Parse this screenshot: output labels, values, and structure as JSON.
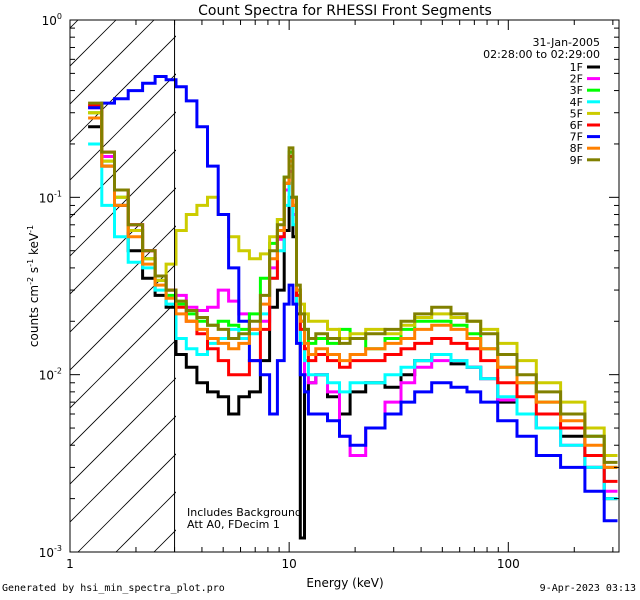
{
  "chart_data": {
    "type": "line",
    "title": "Count Spectra for RHESSI Front Segments",
    "xlabel": "Energy (keV)",
    "ylabel": "counts cm^-2 s^-1 keV^-1",
    "ylabel_parts": {
      "base": "counts cm",
      "exp1": "-2",
      "mid": " s",
      "exp2": "-1",
      "unit": " keV",
      "exp3": "-1"
    },
    "xscale": "log",
    "yscale": "log",
    "xlim": [
      1,
      320
    ],
    "ylim": [
      0.001,
      1
    ],
    "x_ticks": [
      {
        "value": 1,
        "label": "1"
      },
      {
        "value": 10,
        "label": "10"
      },
      {
        "value": 100,
        "label": "100"
      }
    ],
    "y_ticks": [
      {
        "value": 1,
        "base": "10",
        "exp": "0"
      },
      {
        "value": 0.1,
        "base": "10",
        "exp": "-1"
      },
      {
        "value": 0.01,
        "base": "10",
        "exp": "-2"
      },
      {
        "value": 0.001,
        "base": "10",
        "exp": "-3"
      }
    ],
    "date": "31-Jan-2005",
    "time_range": "02:28:00 to 02:29:00",
    "hatched_region_x": [
      1,
      3
    ],
    "annotations": [
      "Includes Background",
      "Att A0, FDecim 1"
    ],
    "legend_position": "top-right",
    "series": [
      {
        "name": "1F",
        "color": "#000000",
        "x": [
          1.3,
          1.5,
          1.7,
          2.0,
          2.3,
          2.6,
          2.9,
          3.2,
          3.6,
          4.0,
          4.5,
          5.0,
          5.6,
          6.2,
          7.0,
          7.8,
          8.5,
          9.2,
          9.8,
          10.2,
          10.6,
          11.0,
          11.5,
          12.0,
          12.5,
          14,
          16,
          18,
          20,
          25,
          30,
          35,
          40,
          50,
          60,
          70,
          80,
          100,
          120,
          150,
          200,
          250,
          300
        ],
        "values": [
          0.25,
          0.15,
          0.09,
          0.05,
          0.035,
          0.028,
          0.024,
          0.013,
          0.011,
          0.009,
          0.008,
          0.0075,
          0.006,
          0.0075,
          0.008,
          0.012,
          0.024,
          0.03,
          0.065,
          0.1,
          0.06,
          0.022,
          0.0012,
          0.008,
          0.009,
          0.01,
          0.0075,
          0.006,
          0.008,
          0.009,
          0.0085,
          0.01,
          0.012,
          0.013,
          0.0115,
          0.011,
          0.0095,
          0.007,
          0.006,
          0.005,
          0.0045,
          0.003,
          0.002
        ]
      },
      {
        "name": "2F",
        "color": "#ff00ff",
        "x": [
          1.3,
          1.5,
          1.7,
          2.0,
          2.3,
          2.6,
          2.9,
          3.2,
          3.6,
          4.0,
          4.5,
          5.0,
          5.6,
          6.2,
          7.0,
          7.8,
          8.5,
          9.2,
          9.8,
          10.2,
          10.6,
          11.0,
          11.5,
          12.0,
          12.5,
          14,
          16,
          18,
          20,
          25,
          30,
          35,
          40,
          50,
          60,
          70,
          80,
          100,
          120,
          150,
          200,
          250,
          300
        ],
        "values": [
          0.32,
          0.17,
          0.11,
          0.07,
          0.05,
          0.036,
          0.03,
          0.028,
          0.024,
          0.023,
          0.024,
          0.03,
          0.026,
          0.022,
          0.018,
          0.02,
          0.04,
          0.058,
          0.11,
          0.14,
          0.08,
          0.03,
          0.015,
          0.01,
          0.009,
          0.01,
          0.008,
          0.0045,
          0.0035,
          0.005,
          0.007,
          0.009,
          0.011,
          0.012,
          0.012,
          0.011,
          0.0095,
          0.0072,
          0.006,
          0.005,
          0.004,
          0.003,
          0.0022
        ]
      },
      {
        "name": "3F",
        "color": "#00ff00",
        "x": [
          1.3,
          1.5,
          1.7,
          2.0,
          2.3,
          2.6,
          2.9,
          3.2,
          3.6,
          4.0,
          4.5,
          5.0,
          5.6,
          6.2,
          7.0,
          7.8,
          8.5,
          9.2,
          9.8,
          10.2,
          10.6,
          11.0,
          11.5,
          12.0,
          12.5,
          14,
          16,
          18,
          20,
          25,
          30,
          35,
          40,
          50,
          60,
          70,
          80,
          100,
          120,
          150,
          200,
          250,
          300
        ],
        "values": [
          0.3,
          0.16,
          0.1,
          0.065,
          0.045,
          0.034,
          0.028,
          0.025,
          0.022,
          0.02,
          0.019,
          0.02,
          0.019,
          0.018,
          0.022,
          0.035,
          0.055,
          0.075,
          0.13,
          0.18,
          0.1,
          0.03,
          0.02,
          0.018,
          0.015,
          0.016,
          0.015,
          0.018,
          0.016,
          0.014,
          0.016,
          0.018,
          0.02,
          0.02,
          0.019,
          0.017,
          0.014,
          0.011,
          0.009,
          0.007,
          0.006,
          0.0045,
          0.003
        ]
      },
      {
        "name": "4F",
        "color": "#00ffff",
        "x": [
          1.3,
          1.5,
          1.7,
          2.0,
          2.3,
          2.6,
          2.9,
          3.2,
          3.6,
          4.0,
          4.5,
          5.0,
          5.6,
          6.2,
          7.0,
          7.8,
          8.5,
          9.2,
          9.8,
          10.2,
          10.6,
          11.0,
          11.5,
          12.0,
          12.5,
          14,
          16,
          18,
          20,
          25,
          30,
          35,
          40,
          50,
          60,
          70,
          80,
          100,
          120,
          150,
          200,
          250,
          300
        ],
        "values": [
          0.2,
          0.09,
          0.06,
          0.043,
          0.04,
          0.03,
          0.025,
          0.016,
          0.014,
          0.013,
          0.015,
          0.016,
          0.018,
          0.016,
          0.017,
          0.022,
          0.035,
          0.05,
          0.09,
          0.12,
          0.07,
          0.025,
          0.015,
          0.012,
          0.01,
          0.01,
          0.009,
          0.008,
          0.009,
          0.009,
          0.01,
          0.011,
          0.012,
          0.013,
          0.012,
          0.011,
          0.0095,
          0.0075,
          0.006,
          0.005,
          0.004,
          0.003,
          0.002
        ]
      },
      {
        "name": "5F",
        "color": "#cccc00",
        "x": [
          1.3,
          1.5,
          1.7,
          2.0,
          2.3,
          2.6,
          2.9,
          3.2,
          3.6,
          4.0,
          4.5,
          5.0,
          5.6,
          6.2,
          7.0,
          7.8,
          8.5,
          9.2,
          9.8,
          10.2,
          10.6,
          11.0,
          11.5,
          12.0,
          12.5,
          14,
          16,
          18,
          20,
          25,
          30,
          35,
          40,
          50,
          60,
          70,
          80,
          100,
          120,
          150,
          200,
          250,
          300
        ],
        "values": [
          0.3,
          0.16,
          0.1,
          0.065,
          0.045,
          0.034,
          0.042,
          0.065,
          0.08,
          0.09,
          0.1,
          0.08,
          0.06,
          0.05,
          0.045,
          0.048,
          0.06,
          0.075,
          0.12,
          0.15,
          0.09,
          0.03,
          0.025,
          0.022,
          0.02,
          0.02,
          0.018,
          0.016,
          0.017,
          0.018,
          0.017,
          0.019,
          0.021,
          0.022,
          0.021,
          0.02,
          0.018,
          0.015,
          0.012,
          0.009,
          0.007,
          0.005,
          0.0035
        ]
      },
      {
        "name": "6F",
        "color": "#ff0000",
        "x": [
          1.3,
          1.5,
          1.7,
          2.0,
          2.3,
          2.6,
          2.9,
          3.2,
          3.6,
          4.0,
          4.5,
          5.0,
          5.6,
          6.2,
          7.0,
          7.8,
          8.5,
          9.2,
          9.8,
          10.2,
          10.6,
          11.0,
          11.5,
          12.0,
          12.5,
          14,
          16,
          18,
          20,
          25,
          30,
          35,
          40,
          50,
          60,
          70,
          80,
          100,
          120,
          150,
          200,
          250,
          300
        ],
        "values": [
          0.33,
          0.18,
          0.11,
          0.07,
          0.05,
          0.036,
          0.03,
          0.024,
          0.02,
          0.017,
          0.014,
          0.012,
          0.01,
          0.01,
          0.012,
          0.018,
          0.035,
          0.06,
          0.12,
          0.17,
          0.09,
          0.028,
          0.018,
          0.014,
          0.012,
          0.013,
          0.012,
          0.011,
          0.012,
          0.012,
          0.013,
          0.014,
          0.015,
          0.016,
          0.015,
          0.014,
          0.012,
          0.009,
          0.0075,
          0.006,
          0.005,
          0.0035,
          0.0025
        ]
      },
      {
        "name": "7F",
        "color": "#0000ff",
        "x": [
          1.3,
          1.5,
          1.7,
          2.0,
          2.3,
          2.6,
          2.9,
          3.2,
          3.6,
          4.0,
          4.5,
          5.0,
          5.6,
          6.2,
          7.0,
          7.8,
          8.5,
          9.2,
          9.8,
          10.2,
          10.6,
          11.0,
          11.5,
          12.0,
          12.5,
          14,
          16,
          18,
          20,
          25,
          30,
          35,
          40,
          50,
          60,
          70,
          80,
          100,
          120,
          150,
          200,
          250,
          300
        ],
        "values": [
          0.32,
          0.34,
          0.36,
          0.4,
          0.44,
          0.48,
          0.46,
          0.42,
          0.35,
          0.25,
          0.15,
          0.08,
          0.04,
          0.02,
          0.012,
          0.01,
          0.006,
          0.012,
          0.025,
          0.032,
          0.025,
          0.015,
          0.01,
          0.008,
          0.006,
          0.006,
          0.0055,
          0.0045,
          0.004,
          0.005,
          0.006,
          0.007,
          0.008,
          0.009,
          0.0085,
          0.008,
          0.007,
          0.0055,
          0.0045,
          0.0035,
          0.003,
          0.0022,
          0.0015
        ]
      },
      {
        "name": "8F",
        "color": "#ff8000",
        "x": [
          1.3,
          1.5,
          1.7,
          2.0,
          2.3,
          2.6,
          2.9,
          3.2,
          3.6,
          4.0,
          4.5,
          5.0,
          5.6,
          6.2,
          7.0,
          7.8,
          8.5,
          9.2,
          9.8,
          10.2,
          10.6,
          11.0,
          11.5,
          12.0,
          12.5,
          14,
          16,
          18,
          20,
          25,
          30,
          35,
          40,
          50,
          60,
          70,
          80,
          100,
          120,
          150,
          200,
          250,
          300
        ],
        "values": [
          0.28,
          0.15,
          0.09,
          0.06,
          0.042,
          0.032,
          0.027,
          0.022,
          0.02,
          0.018,
          0.016,
          0.015,
          0.014,
          0.015,
          0.018,
          0.025,
          0.045,
          0.065,
          0.12,
          0.16,
          0.09,
          0.03,
          0.02,
          0.015,
          0.013,
          0.014,
          0.013,
          0.012,
          0.013,
          0.014,
          0.015,
          0.016,
          0.018,
          0.019,
          0.018,
          0.016,
          0.014,
          0.011,
          0.009,
          0.007,
          0.0055,
          0.004,
          0.003
        ]
      },
      {
        "name": "9F",
        "color": "#808000",
        "x": [
          1.3,
          1.5,
          1.7,
          2.0,
          2.3,
          2.6,
          2.9,
          3.2,
          3.6,
          4.0,
          4.5,
          5.0,
          5.6,
          6.2,
          7.0,
          7.8,
          8.5,
          9.2,
          9.8,
          10.2,
          10.6,
          11.0,
          11.5,
          12.0,
          12.5,
          14,
          16,
          18,
          20,
          25,
          30,
          35,
          40,
          50,
          60,
          70,
          80,
          100,
          120,
          150,
          200,
          250,
          300
        ],
        "values": [
          0.34,
          0.18,
          0.11,
          0.07,
          0.05,
          0.036,
          0.03,
          0.026,
          0.023,
          0.021,
          0.019,
          0.018,
          0.016,
          0.017,
          0.02,
          0.028,
          0.05,
          0.07,
          0.13,
          0.19,
          0.1,
          0.032,
          0.022,
          0.018,
          0.016,
          0.017,
          0.016,
          0.015,
          0.016,
          0.017,
          0.018,
          0.02,
          0.022,
          0.024,
          0.022,
          0.02,
          0.017,
          0.013,
          0.01,
          0.008,
          0.006,
          0.0045,
          0.0032
        ]
      }
    ]
  },
  "footer": {
    "left": "Generated by hsi_min_spectra_plot.pro",
    "right": "9-Apr-2023 03:13"
  }
}
